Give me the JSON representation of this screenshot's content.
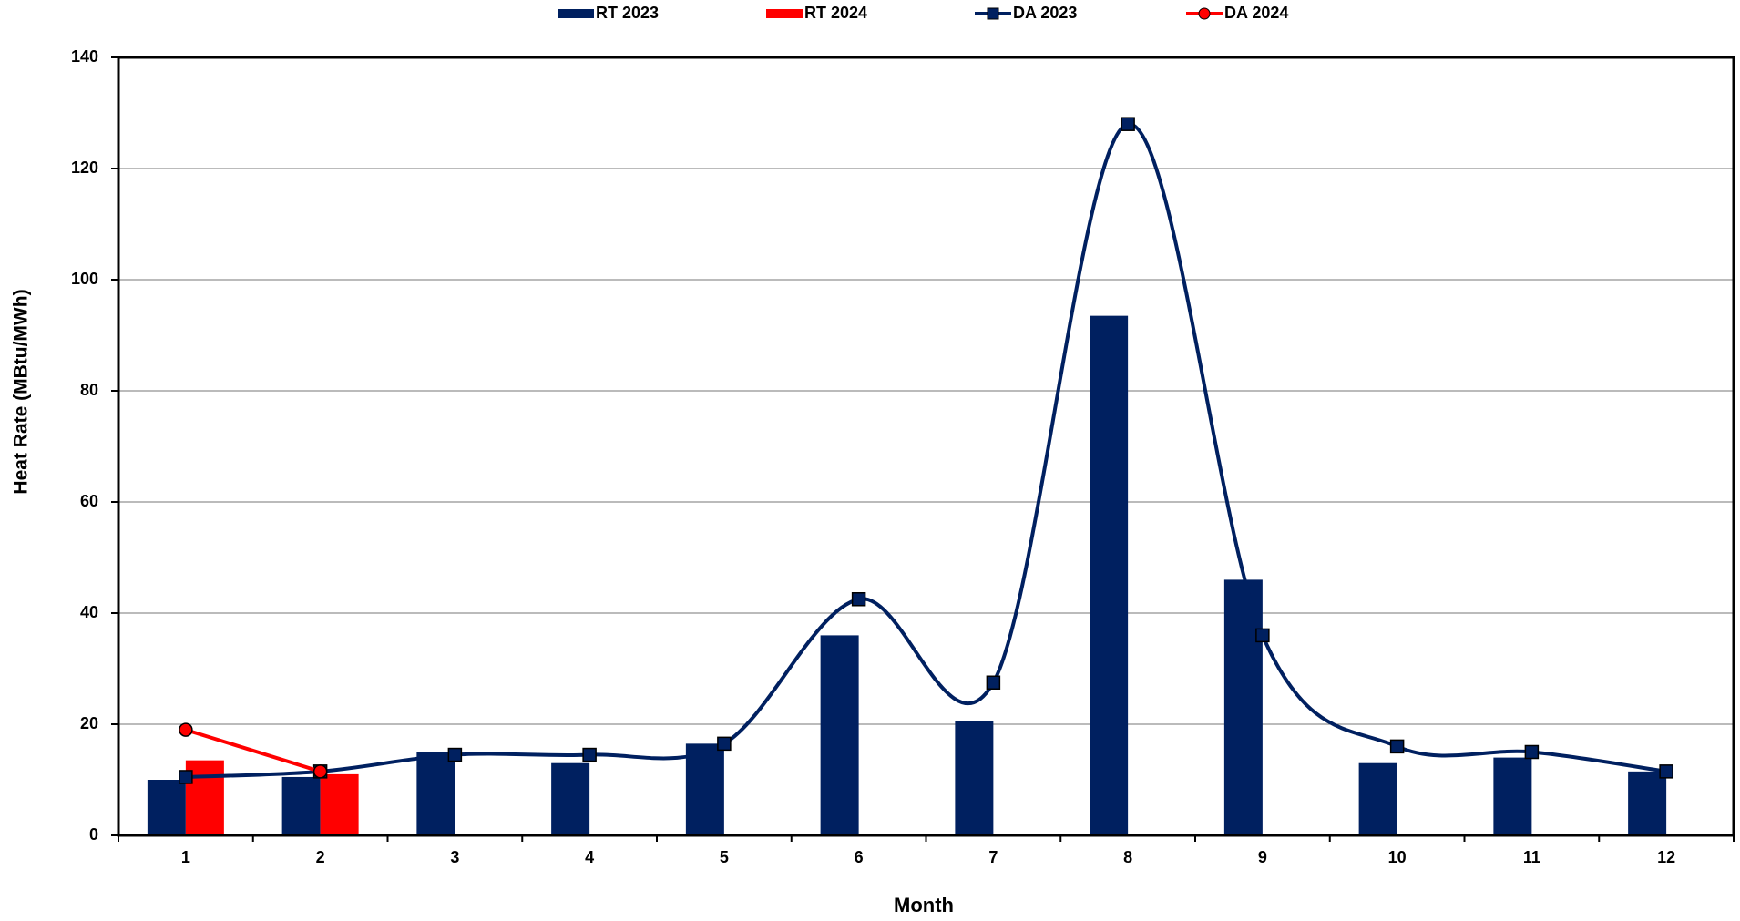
{
  "chart_data": {
    "type": "bar",
    "x_label": "Month",
    "y_label": "Heat Rate (MBtu/MWh)",
    "categories": [
      "1",
      "2",
      "3",
      "4",
      "5",
      "6",
      "7",
      "8",
      "9",
      "10",
      "11",
      "12"
    ],
    "series": [
      {
        "name": "RT 2023",
        "type": "bar",
        "color": "#002060",
        "values": [
          10,
          10.5,
          15,
          13,
          16.5,
          36,
          20.5,
          93.5,
          46,
          13,
          14,
          11.5
        ]
      },
      {
        "name": "RT 2024",
        "type": "bar",
        "color": "#ff0000",
        "values": [
          13.5,
          11,
          null,
          null,
          null,
          null,
          null,
          null,
          null,
          null,
          null,
          null
        ]
      },
      {
        "name": "DA 2023",
        "type": "line",
        "smooth": true,
        "marker": "square",
        "color": "#002060",
        "values": [
          10.5,
          11.5,
          14.5,
          14.5,
          16.5,
          42.5,
          27.5,
          128,
          36,
          16,
          15,
          11.5
        ]
      },
      {
        "name": "DA 2024",
        "type": "line",
        "smooth": false,
        "marker": "circle",
        "color": "#ff0000",
        "values": [
          19,
          11.5,
          null,
          null,
          null,
          null,
          null,
          null,
          null,
          null,
          null,
          null
        ]
      }
    ],
    "ylim": [
      0,
      140
    ],
    "yticks": [
      0,
      20,
      40,
      60,
      80,
      100,
      120,
      140
    ],
    "grid": true,
    "legend": "top"
  }
}
